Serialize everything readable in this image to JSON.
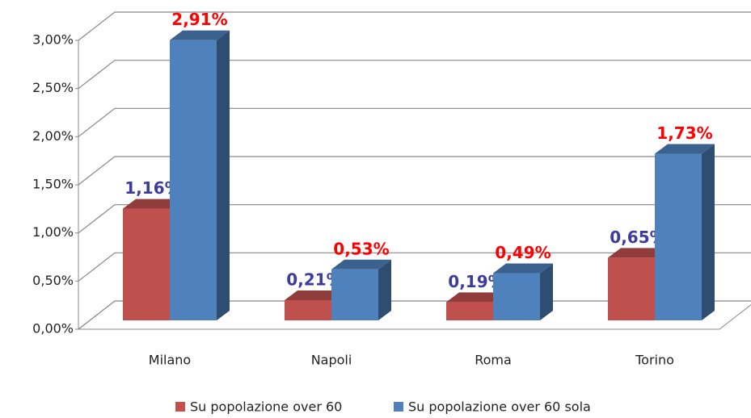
{
  "chart_data": {
    "type": "bar3d",
    "categories": [
      "Milano",
      "Napoli",
      "Roma",
      "Torino"
    ],
    "series": [
      {
        "name": "Su popolazione over 60",
        "color": "#c0504d",
        "label_color": "#3b3ba0",
        "values": [
          1.16,
          0.21,
          0.19,
          0.65
        ],
        "value_labels": [
          "1,16%",
          "0,21%",
          "0,19%",
          "0,65%"
        ]
      },
      {
        "name": "Su popolazione over 60 sola",
        "color": "#4f81bd",
        "label_color": "#ff0000",
        "values": [
          2.91,
          0.53,
          0.49,
          1.73
        ],
        "value_labels": [
          "2,91%",
          "0,53%",
          "0,49%",
          "1,73%"
        ]
      }
    ],
    "ylim": [
      0,
      3
    ],
    "yticks": [
      {
        "value": 0,
        "label": "0,00%"
      },
      {
        "value": 0.5,
        "label": "0,50%"
      },
      {
        "value": 1,
        "label": "1,00%"
      },
      {
        "value": 1.5,
        "label": "1,50%"
      },
      {
        "value": 2,
        "label": "2,00%"
      },
      {
        "value": 2.5,
        "label": "2,50%"
      },
      {
        "value": 3,
        "label": "3,00%"
      }
    ],
    "grid": true
  }
}
